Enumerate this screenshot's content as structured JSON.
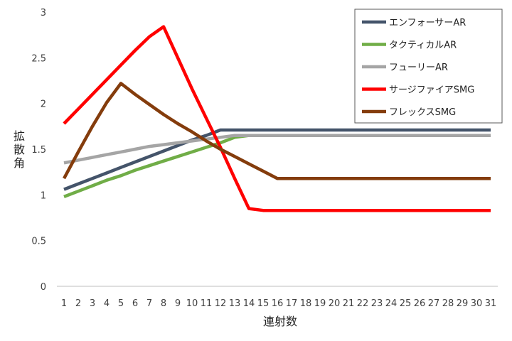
{
  "chart_data": {
    "type": "line",
    "xlabel": "連射数",
    "ylabel": "拡散角",
    "ylim": [
      0,
      3
    ],
    "y_ticks": [
      "0",
      "0.5",
      "1",
      "1.5",
      "2",
      "2.5",
      "3"
    ],
    "grid": false,
    "legend_position": "top-right",
    "x": [
      1,
      2,
      3,
      4,
      5,
      6,
      7,
      8,
      9,
      10,
      11,
      12,
      13,
      14,
      15,
      16,
      17,
      18,
      19,
      20,
      21,
      22,
      23,
      24,
      25,
      26,
      27,
      28,
      29,
      30,
      31
    ],
    "series": [
      {
        "name": "エンフォーサーAR",
        "color": "#44546a",
        "values": [
          1.06,
          1.12,
          1.18,
          1.24,
          1.3,
          1.36,
          1.42,
          1.48,
          1.54,
          1.6,
          1.65,
          1.71,
          1.71,
          1.71,
          1.71,
          1.71,
          1.71,
          1.71,
          1.71,
          1.71,
          1.71,
          1.71,
          1.71,
          1.71,
          1.71,
          1.71,
          1.71,
          1.71,
          1.71,
          1.71,
          1.71
        ]
      },
      {
        "name": "タクティカルAR",
        "color": "#70ad47",
        "values": [
          0.98,
          1.04,
          1.1,
          1.16,
          1.21,
          1.27,
          1.32,
          1.37,
          1.42,
          1.47,
          1.52,
          1.57,
          1.63,
          1.65,
          1.65,
          1.65,
          1.65,
          1.65,
          1.65,
          1.65,
          1.65,
          1.65,
          1.65,
          1.65,
          1.65,
          1.65,
          1.65,
          1.65,
          1.65,
          1.65,
          1.65
        ]
      },
      {
        "name": "フューリーAR",
        "color": "#a5a5a5",
        "values": [
          1.35,
          1.38,
          1.41,
          1.44,
          1.47,
          1.5,
          1.53,
          1.55,
          1.57,
          1.59,
          1.61,
          1.63,
          1.65,
          1.65,
          1.65,
          1.65,
          1.65,
          1.65,
          1.65,
          1.65,
          1.65,
          1.65,
          1.65,
          1.65,
          1.65,
          1.65,
          1.65,
          1.65,
          1.65,
          1.65,
          1.65
        ]
      },
      {
        "name": "サージファイアSMG",
        "color": "#ff0000",
        "values": [
          1.78,
          1.94,
          2.1,
          2.26,
          2.42,
          2.58,
          2.73,
          2.84,
          2.5,
          2.16,
          1.84,
          1.52,
          1.18,
          0.85,
          0.83,
          0.83,
          0.83,
          0.83,
          0.83,
          0.83,
          0.83,
          0.83,
          0.83,
          0.83,
          0.83,
          0.83,
          0.83,
          0.83,
          0.83,
          0.83,
          0.83
        ]
      },
      {
        "name": "フレックスSMG",
        "color": "#843c0c",
        "values": [
          1.18,
          1.47,
          1.75,
          2.01,
          2.22,
          2.1,
          1.99,
          1.88,
          1.78,
          1.69,
          1.59,
          1.5,
          1.42,
          1.34,
          1.26,
          1.18,
          1.18,
          1.18,
          1.18,
          1.18,
          1.18,
          1.18,
          1.18,
          1.18,
          1.18,
          1.18,
          1.18,
          1.18,
          1.18,
          1.18,
          1.18
        ]
      }
    ]
  }
}
